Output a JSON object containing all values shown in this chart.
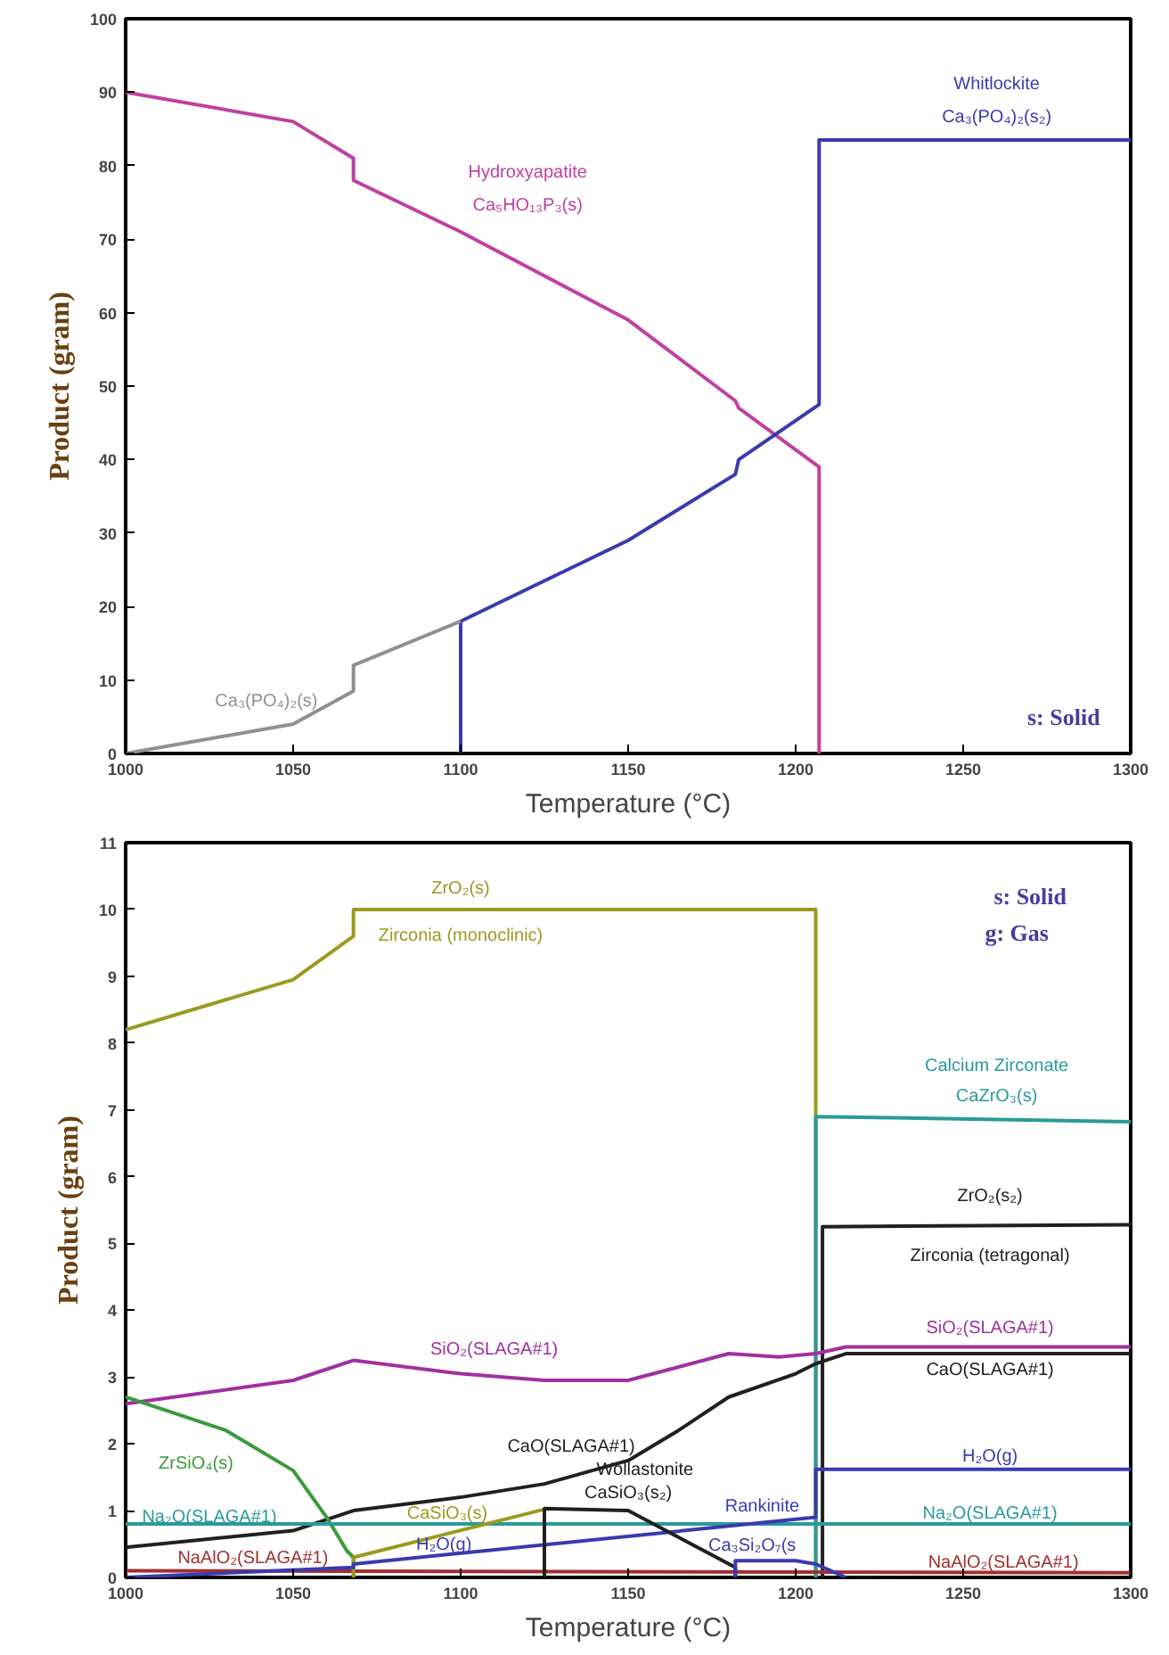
{
  "chart_data": [
    {
      "type": "line",
      "xlabel": "Temperature (°C)",
      "ylabel": "Product (gram)",
      "xlim": [
        1000,
        1300
      ],
      "ylim": [
        0,
        100
      ],
      "xticks": [
        1000,
        1050,
        1100,
        1150,
        1200,
        1250,
        1300
      ],
      "yticks": [
        0,
        10,
        20,
        30,
        40,
        50,
        60,
        70,
        80,
        90,
        100
      ],
      "grid": false,
      "series": [
        {
          "color": "#c040a0",
          "x": [
            1000,
            1050,
            1068,
            1068,
            1100,
            1150,
            1182,
            1183,
            1207,
            1207
          ],
          "values": [
            90,
            86,
            81,
            78,
            71,
            59,
            48,
            47,
            39,
            0
          ]
        },
        {
          "color": "#3a3ab0",
          "x": [
            1100,
            1100,
            1150,
            1182,
            1183,
            1207,
            1207,
            1300
          ],
          "values": [
            0,
            18,
            29,
            38,
            40,
            47.5,
            83.5,
            83.5
          ]
        },
        {
          "color": "#909090",
          "x": [
            1000,
            1050,
            1068,
            1068,
            1100
          ],
          "values": [
            0,
            4,
            8.5,
            12,
            18
          ]
        }
      ],
      "annotations": [
        "Hydroxyapatite",
        "Ca₅HO₁₃P₃(s)",
        "Whitlockite",
        "Ca₃(PO₄)₂(s₂)",
        "Ca₃(PO₄)₂(s)",
        "s: Solid"
      ]
    },
    {
      "type": "line",
      "xlabel": "Temperature (°C)",
      "ylabel": "Product (gram)",
      "xlim": [
        1000,
        1300
      ],
      "ylim": [
        0,
        11
      ],
      "xticks": [
        1000,
        1050,
        1100,
        1150,
        1200,
        1250,
        1300
      ],
      "yticks": [
        0,
        1,
        2,
        3,
        4,
        5,
        6,
        7,
        8,
        9,
        10,
        11
      ],
      "grid": false,
      "series": [
        {
          "color": "#9a9a20",
          "x": [
            1000,
            1050,
            1068,
            1068,
            1206,
            1206
          ],
          "values": [
            8.2,
            8.95,
            9.6,
            10,
            10,
            0
          ]
        },
        {
          "color": "#2a9a9a",
          "x": [
            1206,
            1206,
            1300
          ],
          "values": [
            0,
            6.9,
            6.82
          ]
        },
        {
          "color": "#202020",
          "x": [
            1208,
            1208,
            1300
          ],
          "values": [
            0,
            5.25,
            5.28
          ]
        },
        {
          "color": "#a030a0",
          "x": [
            1000,
            1050,
            1068,
            1100,
            1125,
            1150,
            1180,
            1195,
            1206,
            1215,
            1300
          ],
          "values": [
            2.6,
            2.95,
            3.25,
            3.05,
            2.95,
            2.95,
            3.35,
            3.3,
            3.35,
            3.45,
            3.45
          ]
        },
        {
          "color": "#202020",
          "x": [
            1000,
            1050,
            1068,
            1100,
            1125,
            1150,
            1165,
            1180,
            1200,
            1206,
            1215,
            1300
          ],
          "values": [
            0.45,
            0.7,
            1.0,
            1.2,
            1.4,
            1.75,
            2.2,
            2.7,
            3.05,
            3.2,
            3.35,
            3.35
          ]
        },
        {
          "color": "#3a9a3a",
          "x": [
            1000,
            1030,
            1050,
            1060,
            1066,
            1068,
            1068
          ],
          "values": [
            2.7,
            2.2,
            1.6,
            0.9,
            0.4,
            0.3,
            0
          ]
        },
        {
          "color": "#2a9a9a",
          "x": [
            1000,
            1300
          ],
          "values": [
            0.8,
            0.8
          ]
        },
        {
          "color": "#a03030",
          "x": [
            1000,
            1300
          ],
          "values": [
            0.1,
            0.07
          ]
        },
        {
          "color": "#9a9a20",
          "x": [
            1068,
            1068,
            1125,
            1125
          ],
          "values": [
            0,
            0.3,
            1.02,
            0
          ]
        },
        {
          "color": "#3a3ab0",
          "x": [
            1000,
            1068,
            1068,
            1206,
            1206,
            1300
          ],
          "values": [
            0,
            0.15,
            0.2,
            0.9,
            1.62,
            1.62
          ]
        },
        {
          "color": "#202020",
          "x": [
            1125,
            1125,
            1150,
            1182,
            1182
          ],
          "values": [
            0,
            1.03,
            1.0,
            0.15,
            0
          ]
        },
        {
          "color": "#3a3ab0",
          "x": [
            1182,
            1182,
            1200,
            1206,
            1215
          ],
          "values": [
            0,
            0.25,
            0.25,
            0.2,
            0
          ]
        }
      ],
      "annotations": [
        "ZrO₂(s)",
        "Zirconia (monoclinic)",
        "s: Solid",
        "g: Gas",
        "Calcium Zirconate",
        "CaZrO₃(s)",
        "ZrO₂(s₂)",
        "Zirconia (tetragonal)",
        "SiO₂(SLAGA#1)",
        "SiO₂(SLAGA#1)",
        "CaO(SLAGA#1)",
        "CaO(SLAGA#1)",
        "ZrSiO₄(s)",
        "Na₂O(SLAGA#1)",
        "Na₂O(SLAGA#1)",
        "NaAlO₂(SLAGA#1)",
        "NaAlO₂(SLAGA#1)",
        "CaSiO₃(s)",
        "H₂O(g)",
        "H₂O(g)",
        "Wollastonite",
        "CaSiO₃(s₂)",
        "Rankinite",
        "Ca₃Si₂O₇(s"
      ]
    }
  ]
}
